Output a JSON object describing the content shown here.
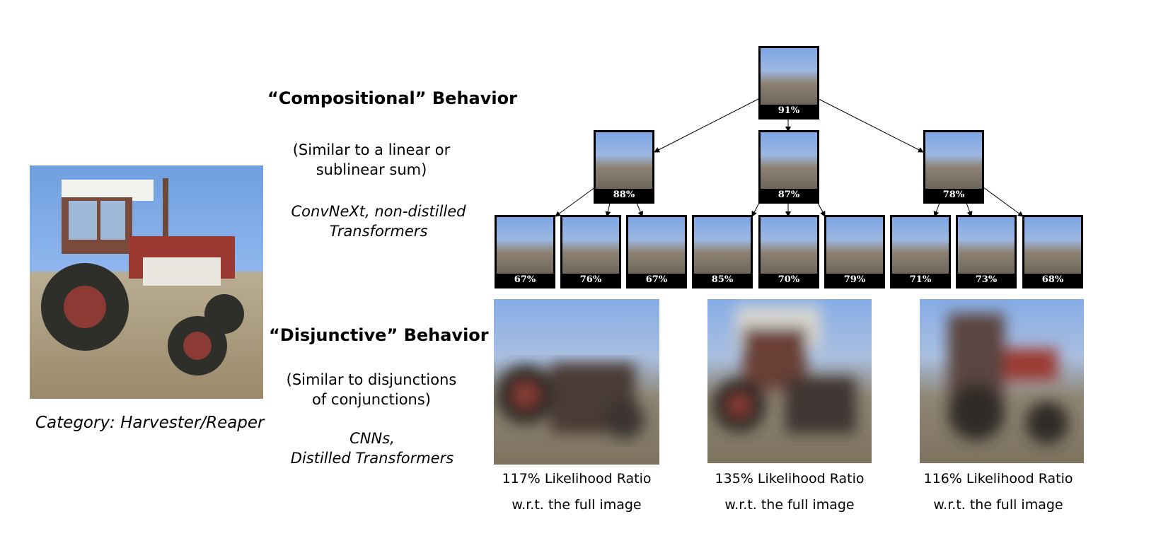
{
  "left": {
    "category_label": "Category: Harvester/Reaper"
  },
  "compositional": {
    "heading": "“Compositional” Behavior",
    "desc_line1": "(Similar to a linear or",
    "desc_line2": "sublinear sum)",
    "models_line1": "ConvNeXt, non-distilled",
    "models_line2": "Transformers"
  },
  "disjunctive": {
    "heading": "“Disjunctive” Behavior",
    "desc_line1": "(Similar to disjunctions",
    "desc_line2": "of conjunctions)",
    "models_line1": "CNNs,",
    "models_line2": "Distilled Transformers"
  },
  "tree": {
    "root": "91%",
    "level1": [
      "88%",
      "87%",
      "78%"
    ],
    "level2": [
      "67%",
      "76%",
      "67%",
      "85%",
      "70%",
      "79%",
      "71%",
      "73%",
      "68%"
    ]
  },
  "disjunctive_examples": [
    {
      "ratio": "117% Likelihood Ratio",
      "ref": "w.r.t. the full image"
    },
    {
      "ratio": "135% Likelihood Ratio",
      "ref": "w.r.t. the full image"
    },
    {
      "ratio": "116% Likelihood Ratio",
      "ref": "w.r.t. the full image"
    }
  ]
}
